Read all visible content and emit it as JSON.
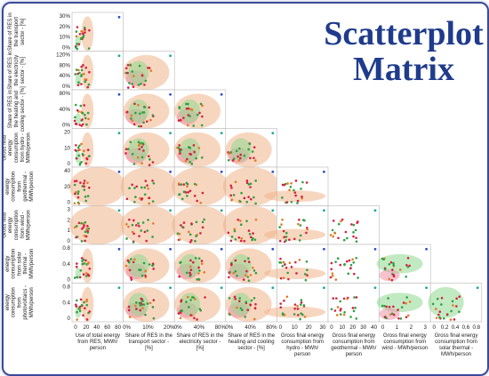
{
  "title": {
    "line1": "Scatterplot",
    "line2": "Matrix"
  },
  "colors": {
    "cluster_orange": "#f0b48a",
    "cluster_red": "#ef8fa6",
    "cluster_green": "#8fd98f",
    "point_red": "#d62040",
    "point_green": "#2ea043",
    "point_orange": "#e07b20",
    "point_teal": "#1aa89c",
    "point_blue": "#2b4fcf"
  },
  "chart_data": {
    "type": "scatter",
    "variables": [
      {
        "label_x": [
          "Use of total energy",
          "from RES, MWh/",
          "person"
        ],
        "ticks": [
          "0",
          "20",
          "40",
          "60",
          "80"
        ]
      },
      {
        "label_x": [
          "Share of RES in the",
          "transport sector -",
          "[%]"
        ],
        "label_y": [
          "Share of RES in",
          "the transport",
          "sector - [%]"
        ],
        "ticks_x": [
          "0%",
          "10%",
          "20%"
        ],
        "ticks_y": [
          "30%",
          "20%",
          "10%",
          "0%"
        ]
      },
      {
        "label_x": [
          "Share of RES in the",
          "electricity sector -",
          "[%]"
        ],
        "label_y": [
          "Share of RES in",
          "the electricity",
          "sector - [%]"
        ],
        "ticks_x": [
          "0%",
          "40%",
          "80%"
        ],
        "ticks_y": [
          "120%",
          "80%",
          "40%",
          "0%"
        ]
      },
      {
        "label_x": [
          "Share of RES in the",
          "heating and cooling",
          "sector - [%]"
        ],
        "label_y": [
          "Share of RES in",
          "the heating and",
          "cooling sector - [%]"
        ],
        "ticks_x": [
          "0%",
          "40%",
          "80%"
        ],
        "ticks_y": [
          "80%",
          "40%",
          "0%"
        ]
      },
      {
        "label_x": [
          "Gross final energy",
          "consumption from",
          "hydro - MWh/",
          "person"
        ],
        "label_y": [
          "Gross final",
          "energy",
          "consumption",
          "from hydro -",
          "MWh/person"
        ],
        "ticks_x": [
          "0",
          "10",
          "20",
          "30"
        ],
        "ticks_y": [
          "20",
          "10",
          "0"
        ]
      },
      {
        "label_x": [
          "Gross final energy",
          "consumption from",
          "geothermal - MWh/",
          "person"
        ],
        "label_y": [
          "Gross final",
          "energy",
          "consumption",
          "from",
          "geothermal -",
          "MWh/person"
        ],
        "ticks_x": [
          "0",
          "10",
          "20",
          "30",
          "40"
        ],
        "ticks_y": [
          "40",
          "20",
          "0"
        ]
      },
      {
        "label_x": [
          "Gross final energy",
          "consumption from",
          "wind - MWh/person"
        ],
        "label_y": [
          "Gross final",
          "energy",
          "consumption",
          "from wind -",
          "MWh/person"
        ],
        "ticks_x": [
          "0",
          "1",
          "2",
          "3"
        ],
        "ticks_y": [
          "3",
          "2",
          "1",
          "0"
        ]
      },
      {
        "label_x": [
          "Gross final energy",
          "consumption from",
          "solar thermal -",
          "MWh/person"
        ],
        "label_y": [
          "Gross final",
          "energy",
          "consumption",
          "from solar",
          "thermal -",
          "MWh/person"
        ],
        "ticks_x": [
          "0",
          "0.2",
          "0.4",
          "0.6",
          "0.8"
        ],
        "ticks_y": [
          "0.8",
          "0.4",
          "0"
        ]
      },
      {
        "label_y": [
          "Gross final",
          "energy",
          "consumption",
          "from",
          "photovoltaics -",
          "MWh/person"
        ],
        "ticks_y": [
          "0.8",
          "0.4",
          "0"
        ]
      }
    ]
  }
}
